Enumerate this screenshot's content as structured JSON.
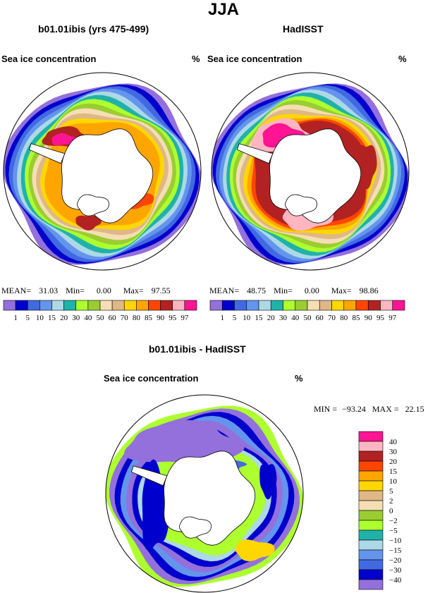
{
  "title": "JJA",
  "palette_abs": [
    "#9370db",
    "#0000cd",
    "#4169e1",
    "#6495ed",
    "#add8e6",
    "#20b2aa",
    "#adff2f",
    "#9acd32",
    "#f5deb3",
    "#deb887",
    "#ffd700",
    "#ffa500",
    "#ff4500",
    "#b22222",
    "#ffb6c1",
    "#ff1493"
  ],
  "palette_diff": [
    "#9370db",
    "#0000cd",
    "#4169e1",
    "#6495ed",
    "#add8e6",
    "#20b2aa",
    "#adff2f",
    "#9acd32",
    "#f5deb3",
    "#deb887",
    "#ffd700",
    "#ffa500",
    "#ff4500",
    "#b22222",
    "#ffb6c1",
    "#ff1493"
  ],
  "panels": [
    {
      "id": "model",
      "title": "b01.01ibis (yrs 475-499)",
      "variable": "Sea ice concentration",
      "units": "%",
      "stats": {
        "mean_label": "MEAN=",
        "mean": "31.03",
        "min_label": "Min=",
        "min": "0.00",
        "max_label": "Max=",
        "max": "97.55"
      }
    },
    {
      "id": "obs",
      "title": "HadISST",
      "variable": "Sea ice concentration",
      "units": "%",
      "stats": {
        "mean_label": "MEAN=",
        "mean": "48.75",
        "min_label": "Min=",
        "min": "0.00",
        "max_label": "Max=",
        "max": "98.86"
      }
    },
    {
      "id": "diff",
      "title": "b01.01ibis - HadISST",
      "variable": "Sea ice concentration",
      "units": "%",
      "stats": {
        "min_label": "MIN =",
        "min": "−93.24",
        "max_label": "MAX =",
        "max": "22.15"
      }
    }
  ],
  "chart_data": [
    {
      "type": "heatmap",
      "projection": "south-polar-stereographic",
      "title": "b01.01ibis (yrs 475-499)",
      "variable": "Sea ice concentration",
      "units": "%",
      "mean": 31.03,
      "min": 0.0,
      "max": 97.55,
      "levels": [
        1,
        5,
        10,
        15,
        20,
        30,
        40,
        50,
        60,
        70,
        80,
        85,
        90,
        95,
        97
      ],
      "colorbar_labels": [
        "1",
        "5",
        "10",
        "15",
        "20",
        "30",
        "40",
        "50",
        "60",
        "70",
        "80",
        "85",
        "90",
        "95",
        "97"
      ],
      "legend": "bottom"
    },
    {
      "type": "heatmap",
      "projection": "south-polar-stereographic",
      "title": "HadISST",
      "variable": "Sea ice concentration",
      "units": "%",
      "mean": 48.75,
      "min": 0.0,
      "max": 98.86,
      "levels": [
        1,
        5,
        10,
        15,
        20,
        30,
        40,
        50,
        60,
        70,
        80,
        85,
        90,
        95,
        97
      ],
      "colorbar_labels": [
        "1",
        "5",
        "10",
        "15",
        "20",
        "30",
        "40",
        "50",
        "60",
        "70",
        "80",
        "85",
        "90",
        "95",
        "97"
      ],
      "legend": "bottom"
    },
    {
      "type": "heatmap",
      "projection": "south-polar-stereographic",
      "title": "b01.01ibis - HadISST",
      "variable": "Sea ice concentration",
      "units": "%",
      "min": -93.24,
      "max": 22.15,
      "levels": [
        -40,
        -30,
        -20,
        -15,
        -10,
        -5,
        -2,
        0,
        2,
        5,
        10,
        15,
        20,
        30,
        40
      ],
      "colorbar_labels": [
        "40",
        "30",
        "20",
        "15",
        "10",
        "5",
        "2",
        "0",
        "−2",
        "−5",
        "−10",
        "−15",
        "−20",
        "−30",
        "−40"
      ],
      "legend": "right"
    }
  ]
}
